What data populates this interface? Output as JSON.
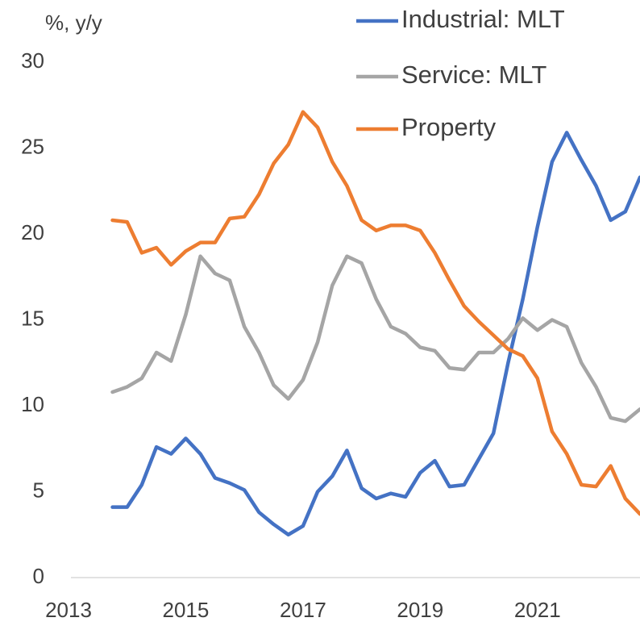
{
  "chart_data": {
    "type": "line",
    "y_axis_label": "%, y/y",
    "x": [
      2013.75,
      2014.0,
      2014.25,
      2014.5,
      2014.75,
      2015.0,
      2015.25,
      2015.5,
      2015.75,
      2016.0,
      2016.25,
      2016.5,
      2016.75,
      2017.0,
      2017.25,
      2017.5,
      2017.75,
      2018.0,
      2018.25,
      2018.5,
      2018.75,
      2019.0,
      2019.25,
      2019.5,
      2019.75,
      2020.0,
      2020.25,
      2020.5,
      2020.75,
      2021.0,
      2021.25,
      2021.5,
      2021.75,
      2022.0,
      2022.25,
      2022.5,
      2022.75
    ],
    "series": [
      {
        "name": "Industrial: MLT",
        "color": "#4472c4",
        "values": [
          4.1,
          4.1,
          5.4,
          7.6,
          7.2,
          8.1,
          7.2,
          5.8,
          5.5,
          5.1,
          3.8,
          3.1,
          2.5,
          3.0,
          5.0,
          5.9,
          7.4,
          5.2,
          4.6,
          4.9,
          4.7,
          6.1,
          6.8,
          5.3,
          5.4,
          6.9,
          8.4,
          12.5,
          16.2,
          20.4,
          24.2,
          25.9,
          24.3,
          22.8,
          20.8,
          21.3,
          23.3
        ]
      },
      {
        "name": "Service: MLT",
        "color": "#a5a5a5",
        "values": [
          10.8,
          11.1,
          11.6,
          13.1,
          12.6,
          15.3,
          18.7,
          17.7,
          17.3,
          14.6,
          13.1,
          11.2,
          10.4,
          11.5,
          13.7,
          17.0,
          18.7,
          18.3,
          16.2,
          14.6,
          14.2,
          13.4,
          13.2,
          12.2,
          12.1,
          13.1,
          13.1,
          13.9,
          15.1,
          14.4,
          15.0,
          14.6,
          12.5,
          11.1,
          9.3,
          9.1,
          9.8
        ]
      },
      {
        "name": "Property",
        "color": "#ed7d31",
        "values": [
          20.8,
          20.7,
          18.9,
          19.2,
          18.2,
          19.0,
          19.5,
          19.5,
          20.9,
          21.0,
          22.3,
          24.1,
          25.2,
          27.1,
          26.2,
          24.2,
          22.8,
          20.8,
          20.2,
          20.5,
          20.5,
          20.2,
          18.9,
          17.3,
          15.8,
          14.9,
          14.1,
          13.3,
          12.9,
          11.6,
          8.5,
          7.2,
          5.4,
          5.3,
          6.5,
          4.6,
          3.7
        ]
      }
    ],
    "xlim": [
      2013,
      2022.75
    ],
    "xticks": [
      2013,
      2015,
      2017,
      2019,
      2021
    ],
    "ylim": [
      0,
      30
    ],
    "yticks": [
      0,
      5,
      10,
      15,
      20,
      25,
      30
    ],
    "grid": false,
    "legend": "top-right"
  }
}
